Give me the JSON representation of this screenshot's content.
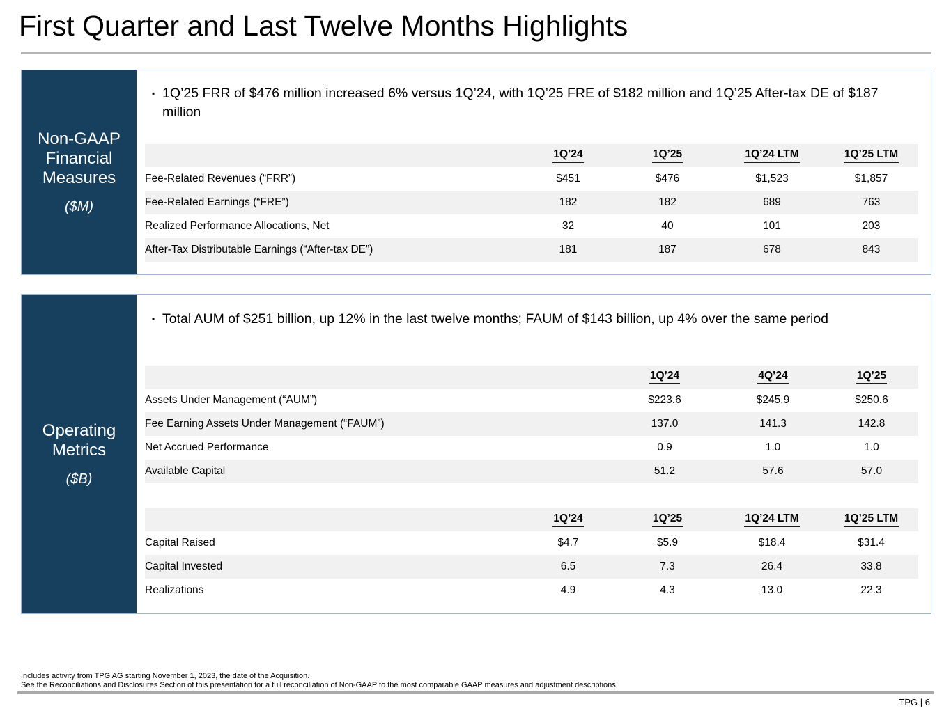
{
  "page": {
    "title": "First Quarter and Last Twelve Months Highlights"
  },
  "colors": {
    "sidebar_navy": "#17405f",
    "box_border": "#9cb4d1",
    "row_stripe": "#f1f1f1",
    "rule_gray": "#a9a9a9",
    "title_rule_gray": "#b5b5b5"
  },
  "glyphs": {
    "bullet": "▪"
  },
  "sections": [
    {
      "sidebar_title": "Non-GAAP Financial Measures",
      "sidebar_unit": "($M)",
      "bullet": "1Q’25 FRR of $476 million increased 6% versus 1Q’24, with 1Q’25 FRE of $182 million and 1Q’25 After-tax DE of $187 million",
      "table": {
        "headers": [
          "",
          "1Q’24",
          "1Q’25",
          "1Q’24 LTM",
          "1Q’25 LTM"
        ],
        "rows": [
          {
            "label": "Fee-Related Revenues (“FRR”)",
            "values": [
              "$451",
              "$476",
              "$1,523",
              "$1,857"
            ]
          },
          {
            "label": "Fee-Related Earnings (“FRE”)",
            "values": [
              "182",
              "182",
              "689",
              "763"
            ]
          },
          {
            "label": "Realized Performance Allocations, Net",
            "values": [
              "32",
              "40",
              "101",
              "203"
            ]
          },
          {
            "label": "After-Tax Distributable Earnings (“After-tax DE”)",
            "values": [
              "181",
              "187",
              "678",
              "843"
            ]
          }
        ]
      }
    },
    {
      "sidebar_title": "Operating Metrics",
      "sidebar_unit": "($B)",
      "bullet": "Total AUM of $251 billion, up 12% in the last twelve months; FAUM of $143 billion, up 4% over the same period",
      "table_a": {
        "headers": [
          "",
          "1Q’24",
          "4Q’24",
          "1Q’25"
        ],
        "rows": [
          {
            "label": "Assets Under Management (“AUM”)",
            "values": [
              "$223.6",
              "$245.9",
              "$250.6"
            ]
          },
          {
            "label": "Fee Earning Assets Under Management (“FAUM”)",
            "values": [
              "137.0",
              "141.3",
              "142.8"
            ]
          },
          {
            "label": "Net Accrued Performance",
            "values": [
              "0.9",
              "1.0",
              "1.0"
            ]
          },
          {
            "label": "Available Capital",
            "values": [
              "51.2",
              "57.6",
              "57.0"
            ]
          }
        ]
      },
      "table_b": {
        "headers": [
          "",
          "1Q’24",
          "1Q’25",
          "1Q’24 LTM",
          "1Q’25 LTM"
        ],
        "rows": [
          {
            "label": "Capital Raised",
            "values": [
              "$4.7",
              "$5.9",
              "$18.4",
              "$31.4"
            ]
          },
          {
            "label": "Capital Invested",
            "values": [
              "6.5",
              "7.3",
              "26.4",
              "33.8"
            ]
          },
          {
            "label": "Realizations",
            "values": [
              "4.9",
              "4.3",
              "13.0",
              "22.3"
            ]
          }
        ]
      }
    }
  ],
  "footer": {
    "note1": "Includes activity from TPG AG starting November 1, 2023, the date of the Acquisition.",
    "note2": "See the Reconciliations and Disclosures Section of this presentation for a full reconciliation of Non-GAAP to the most comparable GAAP measures and adjustment descriptions.",
    "page_label": "TPG | 6"
  }
}
